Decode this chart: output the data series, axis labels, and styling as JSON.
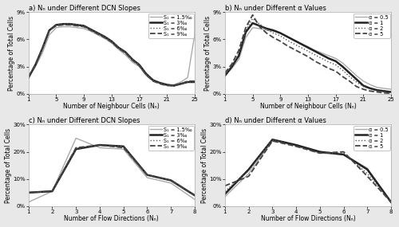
{
  "subplot_a": {
    "title": "a) Nₙ under Different DCN Slopes",
    "xlabel": "Number of Neighbour Cells (Nₙ)",
    "ylabel": "Percentage of Total Cells",
    "ylim": [
      0,
      9
    ],
    "yticks": [
      0,
      3,
      6,
      9
    ],
    "ytick_labels": [
      "0%",
      "3%",
      "6%",
      "9%"
    ],
    "xticks": [
      1,
      5,
      9,
      13,
      17,
      21,
      25
    ],
    "x": [
      1,
      2,
      3,
      4,
      5,
      6,
      7,
      8,
      9,
      10,
      11,
      12,
      13,
      14,
      15,
      16,
      17,
      18,
      19,
      20,
      21,
      22,
      23,
      24,
      25
    ],
    "series": [
      {
        "label": "S₁ = 1.5‰",
        "color": "#aaaaaa",
        "lw": 1.0,
        "ls": "solid",
        "y": [
          1.8,
          3.0,
          4.5,
          6.5,
          7.3,
          7.4,
          7.4,
          7.3,
          7.2,
          6.9,
          6.5,
          6.1,
          5.6,
          4.9,
          4.3,
          3.5,
          3.0,
          2.0,
          1.4,
          1.2,
          0.9,
          1.0,
          1.3,
          1.8,
          6.5
        ]
      },
      {
        "label": "S₁ = 3‰",
        "color": "#222222",
        "lw": 1.8,
        "ls": "solid",
        "y": [
          1.8,
          3.2,
          5.0,
          7.0,
          7.6,
          7.7,
          7.7,
          7.6,
          7.5,
          7.1,
          6.7,
          6.3,
          5.8,
          5.1,
          4.6,
          3.8,
          3.2,
          2.2,
          1.5,
          1.2,
          1.0,
          0.9,
          1.1,
          1.3,
          1.3
        ]
      },
      {
        "label": "S₁ = 6‰",
        "color": "#555555",
        "lw": 1.0,
        "ls": "dotted",
        "y": [
          1.9,
          3.2,
          5.0,
          7.0,
          7.6,
          7.7,
          7.7,
          7.6,
          7.5,
          7.1,
          6.7,
          6.3,
          5.8,
          5.1,
          4.6,
          3.8,
          3.2,
          2.2,
          1.5,
          1.2,
          1.0,
          0.9,
          1.1,
          1.3,
          1.3
        ]
      },
      {
        "label": "S₁ = 9‰",
        "color": "#444444",
        "lw": 1.3,
        "ls": "dashed",
        "y": [
          1.9,
          3.2,
          5.0,
          7.0,
          7.5,
          7.6,
          7.6,
          7.5,
          7.4,
          7.0,
          6.6,
          6.2,
          5.7,
          5.0,
          4.5,
          3.7,
          3.1,
          2.1,
          1.4,
          1.1,
          0.9,
          0.9,
          1.1,
          1.4,
          1.4
        ]
      }
    ]
  },
  "subplot_b": {
    "title": "b) Nₙ under Different α Values",
    "xlabel": "Number of Neighbour Cells (Nₙ)",
    "ylabel": "Percentage of Total Cells",
    "ylim": [
      0,
      9
    ],
    "yticks": [
      0,
      3,
      6,
      9
    ],
    "ytick_labels": [
      "0%",
      "3%",
      "6%",
      "9%"
    ],
    "xticks": [
      1,
      5,
      9,
      13,
      17,
      21,
      25
    ],
    "x": [
      1,
      2,
      3,
      4,
      5,
      6,
      7,
      8,
      9,
      10,
      11,
      12,
      13,
      14,
      15,
      16,
      17,
      18,
      19,
      20,
      21,
      22,
      23,
      24,
      25
    ],
    "series": [
      {
        "label": "α = 0.5",
        "color": "#aaaaaa",
        "lw": 1.0,
        "ls": "solid",
        "y": [
          2.0,
          2.8,
          3.8,
          6.2,
          7.3,
          7.2,
          7.0,
          6.9,
          6.7,
          6.3,
          5.9,
          5.5,
          5.2,
          4.8,
          4.5,
          4.2,
          3.9,
          3.4,
          2.7,
          2.0,
          1.4,
          1.0,
          0.7,
          0.6,
          0.5
        ]
      },
      {
        "label": "α = 1",
        "color": "#222222",
        "lw": 1.8,
        "ls": "solid",
        "y": [
          2.0,
          3.0,
          4.2,
          6.8,
          7.8,
          7.5,
          7.2,
          7.0,
          6.7,
          6.3,
          5.9,
          5.5,
          5.1,
          4.7,
          4.3,
          3.9,
          3.6,
          3.0,
          2.3,
          1.6,
          0.9,
          0.6,
          0.4,
          0.3,
          0.2
        ]
      },
      {
        "label": "α = 2",
        "color": "#555555",
        "lw": 1.0,
        "ls": "dotted",
        "y": [
          2.1,
          3.1,
          4.4,
          7.0,
          8.3,
          7.7,
          7.1,
          6.7,
          6.4,
          5.9,
          5.5,
          5.1,
          4.7,
          4.3,
          3.9,
          3.5,
          3.2,
          2.6,
          1.9,
          1.3,
          0.8,
          0.5,
          0.3,
          0.2,
          0.1
        ]
      },
      {
        "label": "α = 5",
        "color": "#444444",
        "lw": 1.3,
        "ls": "dashed",
        "y": [
          2.3,
          3.3,
          4.8,
          7.3,
          8.7,
          7.4,
          6.7,
          6.2,
          5.8,
          5.3,
          4.9,
          4.5,
          4.1,
          3.6,
          3.2,
          2.8,
          2.5,
          1.9,
          1.4,
          0.8,
          0.5,
          0.3,
          0.2,
          0.1,
          0.05
        ]
      }
    ]
  },
  "subplot_c": {
    "title": "c) Nₙ under Different DCN Slopes",
    "xlabel": "Number of Flow Directions (Nₙ)",
    "ylabel": "Percentage of Total Cells",
    "ylim": [
      0,
      30
    ],
    "yticks": [
      0,
      10,
      20,
      30
    ],
    "ytick_labels": [
      "0%",
      "10%",
      "20%",
      "30%"
    ],
    "xticks": [
      1,
      2,
      3,
      4,
      5,
      6,
      7,
      8
    ],
    "x": [
      1,
      2,
      3,
      4,
      5,
      6,
      7,
      8
    ],
    "series": [
      {
        "label": "S₁ = 1.5‰",
        "color": "#aaaaaa",
        "lw": 1.0,
        "ls": "solid",
        "y": [
          1.5,
          5.5,
          25.0,
          21.5,
          21.0,
          10.5,
          8.5,
          2.5
        ]
      },
      {
        "label": "S₁ = 3‰",
        "color": "#222222",
        "lw": 1.8,
        "ls": "solid",
        "y": [
          5.0,
          5.5,
          21.0,
          22.5,
          22.0,
          11.5,
          9.5,
          4.0
        ]
      },
      {
        "label": "S₁ = 6‰",
        "color": "#555555",
        "lw": 1.0,
        "ls": "dotted",
        "y": [
          5.0,
          5.5,
          21.2,
          22.5,
          22.0,
          11.5,
          9.5,
          4.0
        ]
      },
      {
        "label": "S₁ = 9‰",
        "color": "#444444",
        "lw": 1.3,
        "ls": "dashed",
        "y": [
          5.0,
          5.5,
          21.5,
          22.5,
          21.5,
          11.5,
          9.5,
          4.0
        ]
      }
    ]
  },
  "subplot_d": {
    "title": "d) Nₙ under Different α Values",
    "xlabel": "Number of Flow Directions (Nₙ)",
    "ylabel": "Percentage of Total Cells",
    "ylim": [
      0,
      30
    ],
    "yticks": [
      0,
      10,
      20,
      30
    ],
    "ytick_labels": [
      "0%",
      "10%",
      "20%",
      "30%"
    ],
    "xticks": [
      1,
      2,
      3,
      4,
      5,
      6,
      7,
      8
    ],
    "x": [
      1,
      2,
      3,
      4,
      5,
      6,
      7,
      8
    ],
    "series": [
      {
        "label": "α = 0.5",
        "color": "#aaaaaa",
        "lw": 1.0,
        "ls": "solid",
        "y": [
          3.5,
          12.0,
          24.0,
          22.5,
          19.5,
          19.0,
          14.0,
          1.5
        ]
      },
      {
        "label": "α = 1",
        "color": "#222222",
        "lw": 1.8,
        "ls": "solid",
        "y": [
          4.5,
          13.5,
          24.5,
          22.5,
          20.0,
          19.0,
          13.5,
          1.5
        ]
      },
      {
        "label": "α = 2",
        "color": "#555555",
        "lw": 1.0,
        "ls": "dotted",
        "y": [
          5.5,
          13.0,
          24.5,
          22.0,
          19.5,
          19.5,
          12.0,
          1.5
        ]
      },
      {
        "label": "α = 5",
        "color": "#444444",
        "lw": 1.3,
        "ls": "dashed",
        "y": [
          7.5,
          11.0,
          24.0,
          22.0,
          19.5,
          20.0,
          11.0,
          1.5
        ]
      }
    ]
  },
  "fig_bg": "#e8e8e8",
  "axes_bg": "#ffffff",
  "title_fontsize": 6.0,
  "label_fontsize": 5.5,
  "tick_fontsize": 5.0,
  "legend_fontsize": 4.8
}
